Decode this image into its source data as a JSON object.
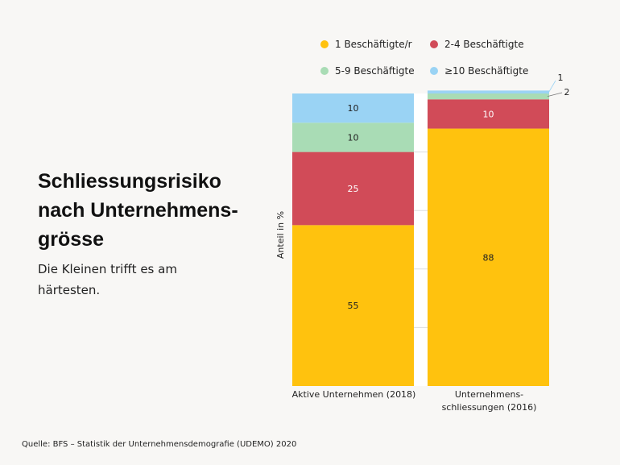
{
  "title": "Schliessungsrisiko nach Unternehmens-grösse",
  "subtitle": "Die Kleinen trifft es am härtesten.",
  "source": "Quelle: BFS – Statistik der Unternehmensdemografie (UDEMO) 2020",
  "chart_data": {
    "type": "bar",
    "stacked": true,
    "ylabel": "Anteil in %",
    "ylim": [
      0,
      100
    ],
    "categories": [
      "Aktive Unternehmen (2018)",
      "Unternehmens-schliessungen (2016)"
    ],
    "category_lines": [
      [
        "Aktive Unternehmen (2018)"
      ],
      [
        "Unternehmens-",
        "schliessungen (2016)"
      ]
    ],
    "series": [
      {
        "name": "1 Beschäftigte/r",
        "color": "#ffc20e",
        "label_color": "#222222",
        "values": [
          55,
          88
        ]
      },
      {
        "name": "2-4 Beschäftigte",
        "color": "#d14b58",
        "label_color": "#ffffff",
        "values": [
          25,
          10
        ]
      },
      {
        "name": "5-9 Beschäftigte",
        "color": "#a9dcb5",
        "label_color": "#222222",
        "values": [
          10,
          2
        ]
      },
      {
        "name": "≥10 Beschäftigte",
        "color": "#9ad3f4",
        "label_color": "#222222",
        "values": [
          10,
          1
        ]
      }
    ],
    "data_labels": [
      [
        "55",
        "25",
        "10",
        "10"
      ],
      [
        "88",
        "10",
        "2",
        "1"
      ]
    ]
  }
}
